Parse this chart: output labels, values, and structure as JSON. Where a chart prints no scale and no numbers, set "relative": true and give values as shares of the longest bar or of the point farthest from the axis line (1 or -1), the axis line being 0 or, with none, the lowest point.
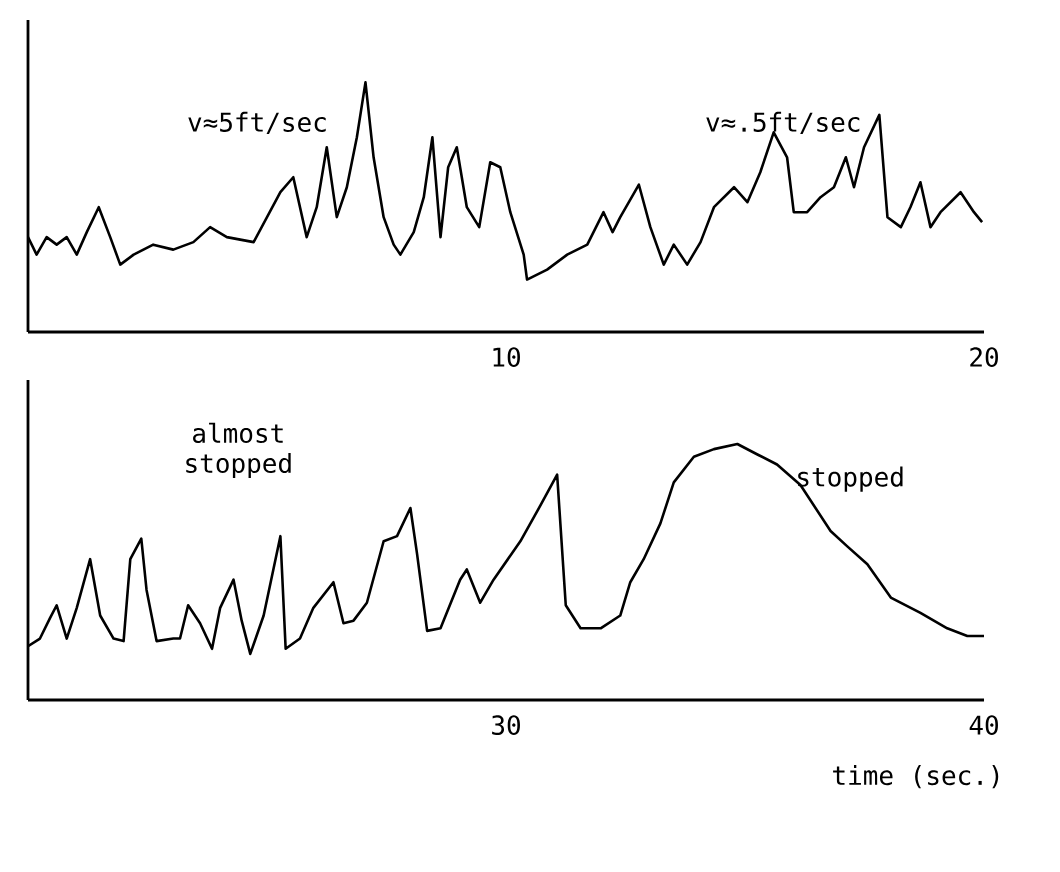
{
  "chart_data": [
    {
      "type": "line",
      "relative": true,
      "color": "#000000",
      "xlim": [
        0,
        20
      ],
      "xticks": [
        10,
        20
      ],
      "annotations": [
        "v≈5ft/sec",
        "v≈.5ft/sec"
      ],
      "x": [
        0,
        0.18,
        0.39,
        0.6,
        0.81,
        1.02,
        1.23,
        1.48,
        1.72,
        1.93,
        2.21,
        2.62,
        3.04,
        3.46,
        3.81,
        4.16,
        4.72,
        5.0,
        5.28,
        5.55,
        5.83,
        6.04,
        6.25,
        6.46,
        6.67,
        6.88,
        7.06,
        7.23,
        7.44,
        7.65,
        7.79,
        8.07,
        8.28,
        8.46,
        8.63,
        8.79,
        8.97,
        9.18,
        9.44,
        9.67,
        9.88,
        10.09,
        10.37,
        10.44,
        10.86,
        11.28,
        11.7,
        12.04,
        12.23,
        12.39,
        12.78,
        13.02,
        13.3,
        13.51,
        13.79,
        14.07,
        14.35,
        14.77,
        15.05,
        15.32,
        15.6,
        15.88,
        16.02,
        16.3,
        16.58,
        16.86,
        17.11,
        17.28,
        17.49,
        17.81,
        17.98,
        18.26,
        18.46,
        18.67,
        18.88,
        19.09,
        19.51,
        19.79,
        19.96
      ],
      "values": [
        0.38,
        0.31,
        0.38,
        0.35,
        0.38,
        0.31,
        0.4,
        0.5,
        0.38,
        0.27,
        0.31,
        0.35,
        0.33,
        0.36,
        0.42,
        0.38,
        0.36,
        0.46,
        0.56,
        0.62,
        0.38,
        0.5,
        0.74,
        0.46,
        0.58,
        0.78,
        1,
        0.7,
        0.46,
        0.35,
        0.31,
        0.4,
        0.54,
        0.78,
        0.38,
        0.66,
        0.74,
        0.5,
        0.42,
        0.68,
        0.66,
        0.48,
        0.31,
        0.21,
        0.25,
        0.31,
        0.35,
        0.48,
        0.4,
        0.46,
        0.59,
        0.42,
        0.27,
        0.35,
        0.27,
        0.36,
        0.5,
        0.58,
        0.52,
        0.64,
        0.8,
        0.7,
        0.48,
        0.48,
        0.54,
        0.58,
        0.7,
        0.58,
        0.74,
        0.87,
        0.46,
        0.42,
        0.5,
        0.6,
        0.42,
        0.48,
        0.56,
        0.48,
        0.44
      ]
    },
    {
      "type": "line",
      "relative": true,
      "color": "#000000",
      "xlim": [
        20,
        40
      ],
      "xticks": [
        30,
        40
      ],
      "xlabel": "time (sec.)",
      "annotations": [
        "almost stopped",
        "stopped"
      ],
      "x": [
        20.0,
        20.25,
        20.46,
        20.6,
        20.81,
        21.02,
        21.3,
        21.51,
        21.79,
        22.0,
        22.14,
        22.37,
        22.48,
        22.69,
        23.04,
        23.18,
        23.35,
        23.6,
        23.85,
        24.02,
        24.3,
        24.47,
        24.65,
        24.93,
        25.28,
        25.39,
        25.69,
        25.97,
        26.39,
        26.6,
        26.81,
        27.09,
        27.44,
        27.72,
        28.0,
        28.14,
        28.35,
        28.63,
        29.04,
        29.18,
        29.46,
        29.74,
        30.3,
        30.72,
        31.07,
        31.25,
        31.56,
        31.98,
        32.39,
        32.6,
        32.88,
        33.23,
        33.51,
        33.93,
        34.35,
        34.84,
        35.25,
        35.67,
        36.16,
        36.79,
        37.14,
        37.56,
        38.05,
        38.67,
        39.23,
        39.65,
        40.0
      ],
      "values": [
        0.21,
        0.24,
        0.32,
        0.37,
        0.24,
        0.36,
        0.55,
        0.33,
        0.24,
        0.23,
        0.55,
        0.63,
        0.43,
        0.23,
        0.24,
        0.24,
        0.37,
        0.3,
        0.2,
        0.36,
        0.47,
        0.31,
        0.18,
        0.33,
        0.64,
        0.2,
        0.24,
        0.36,
        0.46,
        0.3,
        0.31,
        0.38,
        0.62,
        0.64,
        0.75,
        0.57,
        0.27,
        0.28,
        0.47,
        0.51,
        0.38,
        0.47,
        0.62,
        0.76,
        0.88,
        0.37,
        0.28,
        0.28,
        0.33,
        0.46,
        0.55,
        0.69,
        0.85,
        0.95,
        0.98,
        1,
        0.96,
        0.92,
        0.84,
        0.66,
        0.6,
        0.53,
        0.4,
        0.34,
        0.28,
        0.25,
        0.25
      ]
    }
  ]
}
